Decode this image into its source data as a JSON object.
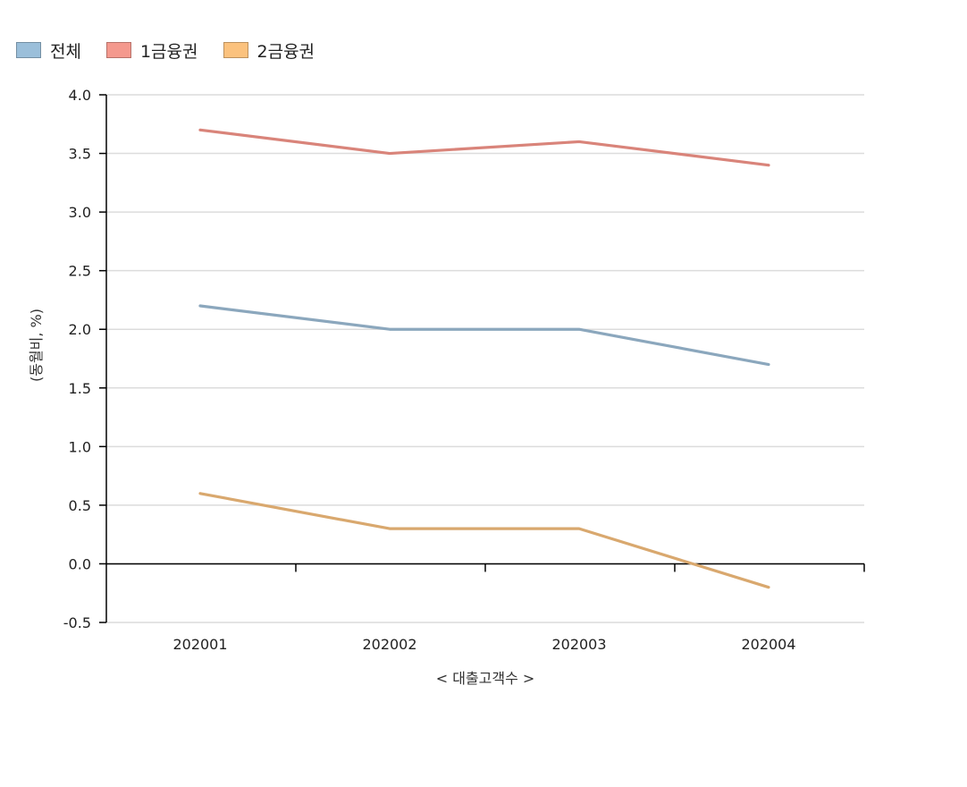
{
  "chart_data": {
    "type": "line",
    "categories": [
      "202001",
      "202002",
      "202003",
      "202004"
    ],
    "series": [
      {
        "name": "전체",
        "values": [
          2.2,
          2.0,
          2.0,
          1.7
        ],
        "color": "#8ba7bd",
        "legend_color": "#9bbfda"
      },
      {
        "name": "1금융권",
        "values": [
          3.7,
          3.5,
          3.6,
          3.4
        ],
        "color": "#d9847a",
        "legend_color": "#f4998e"
      },
      {
        "name": "2금융권",
        "values": [
          0.6,
          0.3,
          0.3,
          -0.2
        ],
        "color": "#d9a86e",
        "legend_color": "#fbc27e"
      }
    ],
    "xlabel": "< 대출고객수 >",
    "ylabel": "(동월비, %)",
    "ylim": [
      -0.5,
      4.0
    ],
    "yticks": [
      "4.0",
      "3.5",
      "3.0",
      "2.5",
      "2.0",
      "1.5",
      "1.0",
      "0.5",
      "0.0",
      "-0.5"
    ],
    "grid": true,
    "legend_position": "top-left"
  }
}
